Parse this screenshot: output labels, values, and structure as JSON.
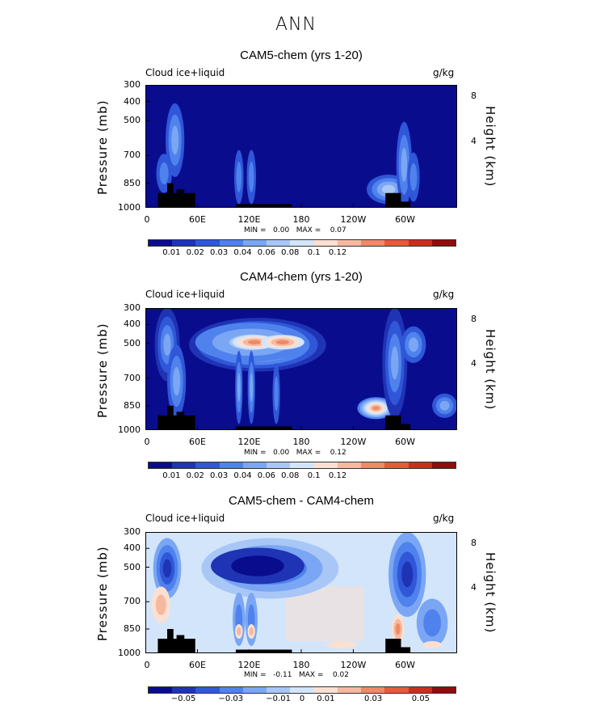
{
  "title": "ANN",
  "chart_data": [
    {
      "type": "heatmap",
      "title": "CAM5-chem (yrs 1-20)",
      "variable": "Cloud ice+liquid",
      "units": "g/kg",
      "ylabel": "Pressure (mb)",
      "ylabel_right": "Height (km)",
      "yticks": [
        "300",
        "400",
        "500",
        "700",
        "850",
        "1000"
      ],
      "yticks_right": [
        "8",
        "4"
      ],
      "xticks": [
        "0",
        "60E",
        "120E",
        "180",
        "120W",
        "60W"
      ],
      "ylim": [
        1000,
        300
      ],
      "min_label": "MIN =",
      "min_value": "0.00",
      "max_label": "MAX =",
      "max_value": "0.07",
      "colorbar_labels": [
        "0.01",
        "0.02",
        "0.03",
        "0.04",
        "0.06",
        "0.08",
        "0.1",
        "0.12"
      ],
      "colorbar_colors": [
        "#0a0c8e",
        "#1f33b5",
        "#2f57d8",
        "#4f82ec",
        "#7aa6f4",
        "#a8c7f7",
        "#d3e5fa",
        "#fbe0d2",
        "#f6b9a0",
        "#ef8a68",
        "#e55b3c",
        "#c8301e",
        "#8e0d0d"
      ],
      "features": [
        {
          "lon": 10,
          "p": 850,
          "value": 0.04
        },
        {
          "lon": 30,
          "p": 760,
          "value": 0.04
        },
        {
          "lon": 100,
          "p": 880,
          "value": 0.03
        },
        {
          "lon": 130,
          "p": 880,
          "value": 0.03
        },
        {
          "lon": 270,
          "p": 900,
          "value": 0.06
        },
        {
          "lon": 303,
          "p": 850,
          "value": 0.05
        }
      ]
    },
    {
      "type": "heatmap",
      "title": "CAM4-chem (yrs 1-20)",
      "variable": "Cloud ice+liquid",
      "units": "g/kg",
      "ylabel": "Pressure (mb)",
      "ylabel_right": "Height (km)",
      "yticks": [
        "300",
        "400",
        "500",
        "700",
        "850",
        "1000"
      ],
      "yticks_right": [
        "8",
        "4"
      ],
      "xticks": [
        "0",
        "60E",
        "120E",
        "180",
        "120W",
        "60W"
      ],
      "ylim": [
        1000,
        300
      ],
      "min_label": "MIN =",
      "min_value": "0.00",
      "max_label": "MAX =",
      "max_value": "0.12",
      "colorbar_labels": [
        "0.01",
        "0.02",
        "0.03",
        "0.04",
        "0.06",
        "0.08",
        "0.1",
        "0.12"
      ],
      "colorbar_colors": [
        "#0a0c8e",
        "#1f33b5",
        "#2f57d8",
        "#4f82ec",
        "#7aa6f4",
        "#a8c7f7",
        "#d3e5fa",
        "#fbe0d2",
        "#f6b9a0",
        "#ef8a68",
        "#e55b3c",
        "#c8301e",
        "#8e0d0d"
      ],
      "features": [
        {
          "lon": 120,
          "p": 500,
          "value": 0.1
        },
        {
          "lon": 150,
          "p": 500,
          "value": 0.1
        },
        {
          "lon": 280,
          "p": 850,
          "value": 0.1
        },
        {
          "lon": 305,
          "p": 500,
          "value": 0.04
        },
        {
          "lon": 10,
          "p": 450,
          "value": 0.04
        }
      ]
    },
    {
      "type": "heatmap",
      "title": "CAM5-chem - CAM4-chem",
      "variable": "Cloud ice+liquid",
      "units": "g/kg",
      "ylabel": "Pressure (mb)",
      "ylabel_right": "Height (km)",
      "yticks": [
        "300",
        "400",
        "500",
        "700",
        "850",
        "1000"
      ],
      "yticks_right": [
        "8",
        "4"
      ],
      "xticks": [
        "0",
        "60E",
        "120E",
        "180",
        "120W",
        "60W"
      ],
      "ylim": [
        1000,
        300
      ],
      "min_label": "MIN =",
      "min_value": "-0.11",
      "max_label": "MAX =",
      "max_value": "0.02",
      "colorbar_labels": [
        "−0.05",
        "−0.03",
        "−0.01",
        "0",
        "0.01",
        "0.03",
        "0.05"
      ],
      "colorbar_colors": [
        "#0a0c8e",
        "#1f33b5",
        "#2f57d8",
        "#4f82ec",
        "#7aa6f4",
        "#a8c7f7",
        "#d3e5fa",
        "#fbe0d2",
        "#f6b9a0",
        "#ef8a68",
        "#e55b3c",
        "#c8301e",
        "#8e0d0d"
      ],
      "features": [
        {
          "lon": 120,
          "p": 480,
          "value": -0.05
        },
        {
          "lon": 150,
          "p": 480,
          "value": -0.05
        },
        {
          "lon": 305,
          "p": 480,
          "value": -0.05
        },
        {
          "lon": 10,
          "p": 450,
          "value": -0.04
        },
        {
          "lon": 285,
          "p": 880,
          "value": 0.02
        },
        {
          "lon": 10,
          "p": 750,
          "value": 0.02
        }
      ]
    }
  ]
}
